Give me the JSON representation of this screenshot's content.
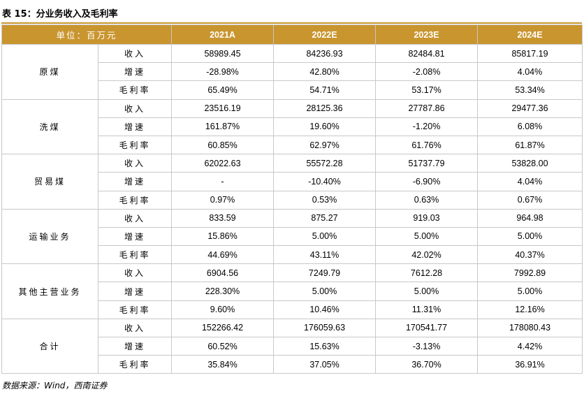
{
  "title": "表 15：分业务收入及毛利率",
  "source": "数据来源：Wind，西南证券",
  "colors": {
    "accent": "#c9952f",
    "border": "#c8c8c8"
  },
  "table": {
    "unit_label": "单位：百万元",
    "headers": [
      "2021A",
      "2022E",
      "2023E",
      "2024E"
    ],
    "groups": [
      {
        "name": "原煤",
        "rows": [
          {
            "metric": "收入",
            "values": [
              "58989.45",
              "84236.93",
              "82484.81",
              "85817.19"
            ]
          },
          {
            "metric": "增速",
            "values": [
              "-28.98%",
              "42.80%",
              "-2.08%",
              "4.04%"
            ]
          },
          {
            "metric": "毛利率",
            "values": [
              "65.49%",
              "54.71%",
              "53.17%",
              "53.34%"
            ]
          }
        ]
      },
      {
        "name": "洗煤",
        "rows": [
          {
            "metric": "收入",
            "values": [
              "23516.19",
              "28125.36",
              "27787.86",
              "29477.36"
            ]
          },
          {
            "metric": "增速",
            "values": [
              "161.87%",
              "19.60%",
              "-1.20%",
              "6.08%"
            ]
          },
          {
            "metric": "毛利率",
            "values": [
              "60.85%",
              "62.97%",
              "61.76%",
              "61.87%"
            ]
          }
        ]
      },
      {
        "name": "贸易煤",
        "rows": [
          {
            "metric": "收入",
            "values": [
              "62022.63",
              "55572.28",
              "51737.79",
              "53828.00"
            ]
          },
          {
            "metric": "增速",
            "values": [
              "-",
              "-10.40%",
              "-6.90%",
              "4.04%"
            ]
          },
          {
            "metric": "毛利率",
            "values": [
              "0.97%",
              "0.53%",
              "0.63%",
              "0.67%"
            ]
          }
        ]
      },
      {
        "name": "运输业务",
        "rows": [
          {
            "metric": "收入",
            "values": [
              "833.59",
              "875.27",
              "919.03",
              "964.98"
            ]
          },
          {
            "metric": "增速",
            "values": [
              "15.86%",
              "5.00%",
              "5.00%",
              "5.00%"
            ]
          },
          {
            "metric": "毛利率",
            "values": [
              "44.69%",
              "43.11%",
              "42.02%",
              "40.37%"
            ]
          }
        ]
      },
      {
        "name": "其他主营业务",
        "rows": [
          {
            "metric": "收入",
            "values": [
              "6904.56",
              "7249.79",
              "7612.28",
              "7992.89"
            ]
          },
          {
            "metric": "增速",
            "values": [
              "228.30%",
              "5.00%",
              "5.00%",
              "5.00%"
            ]
          },
          {
            "metric": "毛利率",
            "values": [
              "9.60%",
              "10.46%",
              "11.31%",
              "12.16%"
            ]
          }
        ]
      },
      {
        "name": "合计",
        "rows": [
          {
            "metric": "收入",
            "values": [
              "152266.42",
              "176059.63",
              "170541.77",
              "178080.43"
            ]
          },
          {
            "metric": "增速",
            "values": [
              "60.52%",
              "15.63%",
              "-3.13%",
              "4.42%"
            ]
          },
          {
            "metric": "毛利率",
            "values": [
              "35.84%",
              "37.05%",
              "36.70%",
              "36.91%"
            ]
          }
        ]
      }
    ]
  }
}
